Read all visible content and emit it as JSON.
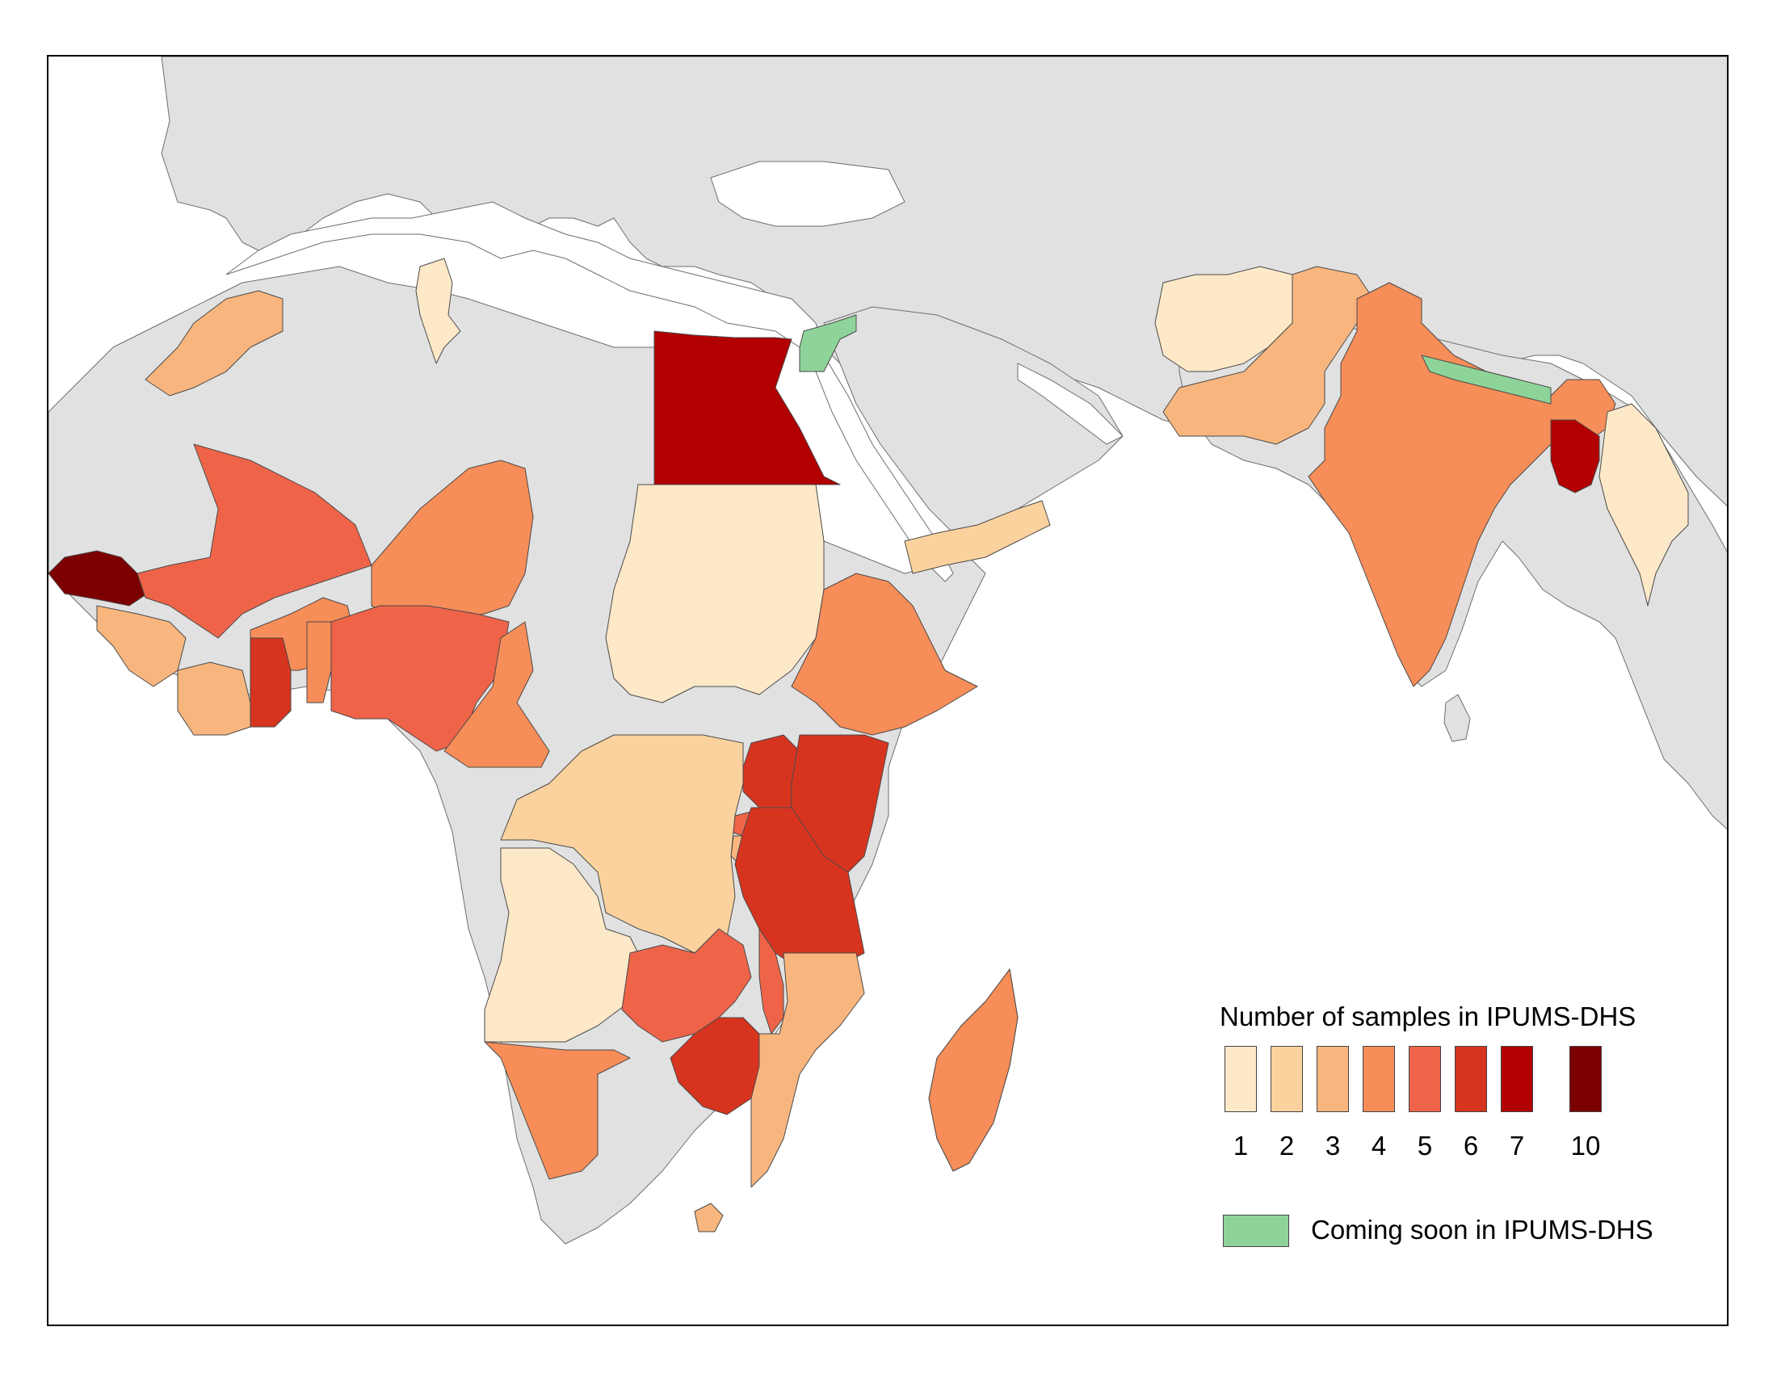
{
  "legend": {
    "title": "Number of samples in IPUMS-DHS",
    "scale": [
      {
        "label": "1",
        "value": 1,
        "color": "#fde8c8"
      },
      {
        "label": "2",
        "value": 2,
        "color": "#fbd29e"
      },
      {
        "label": "3",
        "value": 3,
        "color": "#f8b67e"
      },
      {
        "label": "4",
        "value": 4,
        "color": "#f78d58"
      },
      {
        "label": "5",
        "value": 5,
        "color": "#ef6448"
      },
      {
        "label": "6",
        "value": 6,
        "color": "#d7341f"
      },
      {
        "label": "7",
        "value": 7,
        "color": "#b20000"
      },
      {
        "label": "10",
        "value": 10,
        "color": "#7d0000"
      }
    ],
    "coming_soon_label": "Coming soon in IPUMS-DHS",
    "coming_soon_color": "#8ed49a"
  },
  "colors": {
    "no_data_land": "#e1e1e1",
    "water": "#ffffff",
    "border": "#555555"
  },
  "chart_data": {
    "type": "choropleth",
    "region": "Africa and South Asia",
    "countries": [
      {
        "name": "Morocco",
        "value": 3
      },
      {
        "name": "Tunisia",
        "value": 1
      },
      {
        "name": "Egypt",
        "value": 7
      },
      {
        "name": "Jordan",
        "status": "coming soon"
      },
      {
        "name": "Senegal",
        "value": 10
      },
      {
        "name": "Mali",
        "value": 5
      },
      {
        "name": "Burkina Faso",
        "value": 4
      },
      {
        "name": "Niger",
        "value": 4
      },
      {
        "name": "Guinea",
        "value": 3
      },
      {
        "name": "Cote d'Ivoire",
        "value": 3
      },
      {
        "name": "Ghana",
        "value": 6
      },
      {
        "name": "Benin",
        "value": 4
      },
      {
        "name": "Nigeria",
        "value": 5
      },
      {
        "name": "Cameroon",
        "value": 4
      },
      {
        "name": "Sudan",
        "value": 1
      },
      {
        "name": "Ethiopia",
        "value": 4
      },
      {
        "name": "Yemen",
        "value": 2
      },
      {
        "name": "Uganda",
        "value": 6
      },
      {
        "name": "Kenya",
        "value": 6
      },
      {
        "name": "Rwanda",
        "value": 5
      },
      {
        "name": "Burundi",
        "value": 3
      },
      {
        "name": "Tanzania",
        "value": 6
      },
      {
        "name": "DR Congo",
        "value": 2
      },
      {
        "name": "Angola",
        "value": 1
      },
      {
        "name": "Zambia",
        "value": 5
      },
      {
        "name": "Malawi",
        "value": 5
      },
      {
        "name": "Mozambique",
        "value": 3
      },
      {
        "name": "Zimbabwe",
        "value": 6
      },
      {
        "name": "Namibia",
        "value": 4
      },
      {
        "name": "Lesotho",
        "value": 3
      },
      {
        "name": "Madagascar",
        "value": 4
      },
      {
        "name": "Afghanistan",
        "value": 1
      },
      {
        "name": "Pakistan",
        "value": 3
      },
      {
        "name": "India",
        "value": 4
      },
      {
        "name": "Nepal",
        "status": "coming soon"
      },
      {
        "name": "Bangladesh",
        "value": 7
      },
      {
        "name": "Myanmar",
        "value": 1
      }
    ]
  }
}
